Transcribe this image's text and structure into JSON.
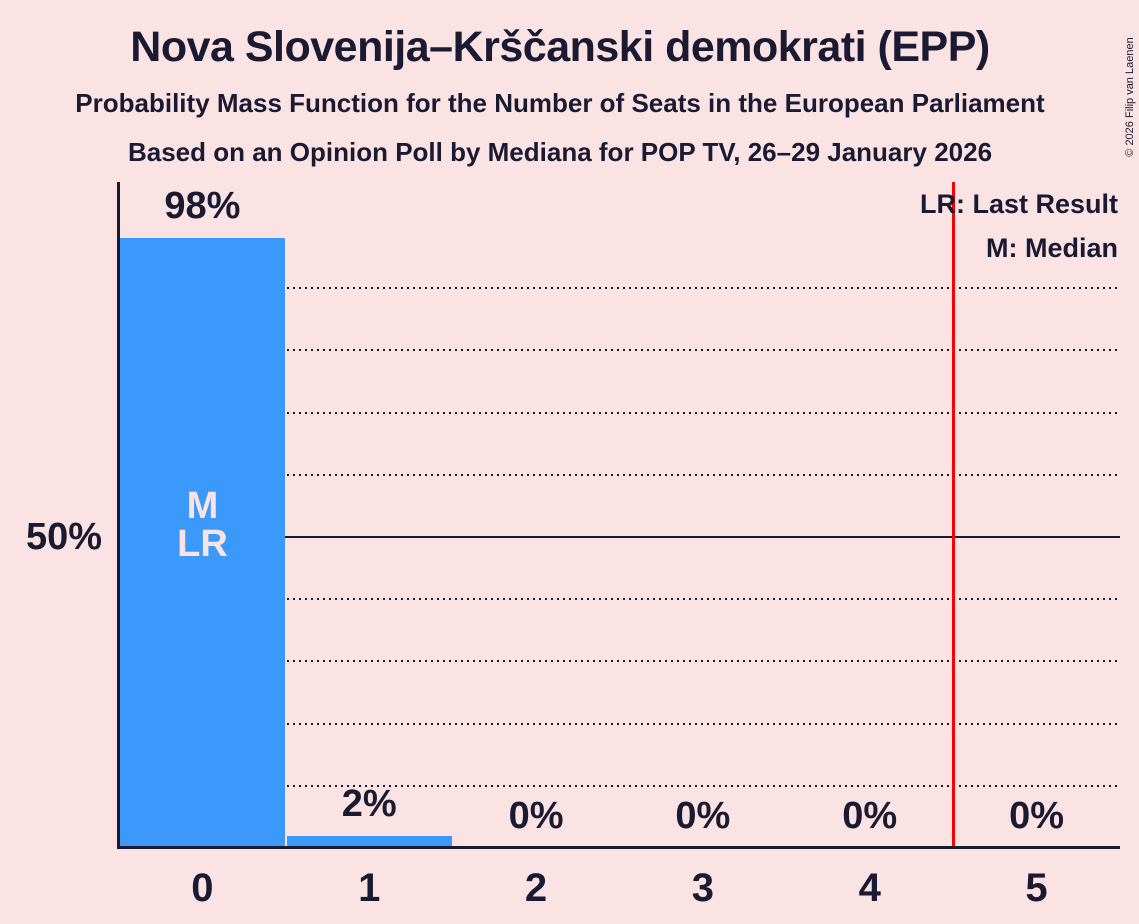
{
  "header": {
    "title": "Nova Slovenija–Krščanski demokrati (EPP)",
    "subtitle1": "Probability Mass Function for the Number of Seats in the European Parliament",
    "subtitle2": "Based on an Opinion Poll by Mediana for POP TV, 26–29 January 2026",
    "copyright": "© 2026 Filip van Laenen"
  },
  "legend": {
    "last_result": "LR: Last Result",
    "median": "M: Median"
  },
  "y_axis": {
    "label_50": "50%"
  },
  "bar_markers": {
    "median": "M",
    "last_result": "LR"
  },
  "chart_data": {
    "type": "bar",
    "title": "Nova Slovenija–Krščanski demokrati (EPP)",
    "categories": [
      "0",
      "1",
      "2",
      "3",
      "4",
      "5"
    ],
    "values": [
      98,
      2,
      0,
      0,
      0,
      0
    ],
    "value_labels": [
      "98%",
      "2%",
      "0%",
      "0%",
      "0%",
      "0%"
    ],
    "ylim": [
      0,
      100
    ],
    "y_gridlines_pct": [
      10,
      20,
      30,
      40,
      50,
      60,
      70,
      80,
      90
    ],
    "y_solid_line_pct": 50,
    "y_axis_tick_labels": [
      {
        "pct": 50,
        "label": "50%"
      }
    ],
    "red_vertical_line_x": 4.5,
    "median_seat": 0,
    "last_result_seat": 0,
    "grid": "dotted-horizontal",
    "legend_position": "top-right",
    "colors": {
      "background": "#fce3e3",
      "bar": "#3a99fb",
      "text": "#1a1a32",
      "red_line": "#ff0000",
      "bar_marker_text": "#fce3e3"
    }
  }
}
